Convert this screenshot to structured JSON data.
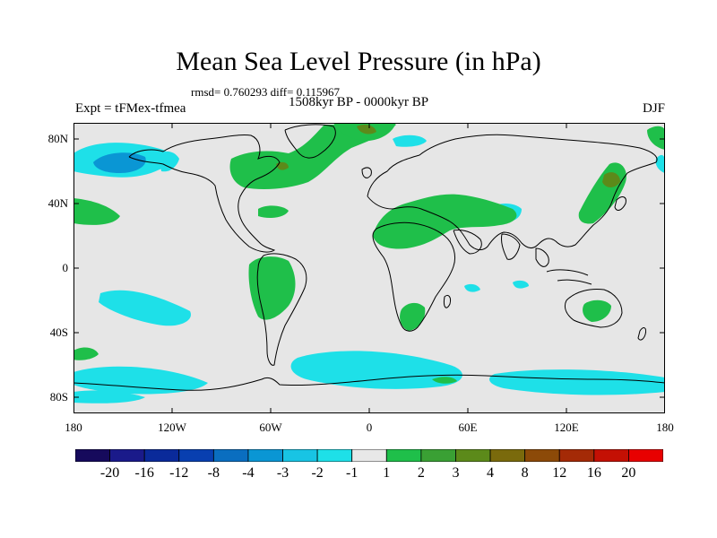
{
  "header": {
    "title": "Mean Sea Level Pressure (in hPa)",
    "stats": "rmsd= 0.760293 diff= 0.115967",
    "period": "1508kyr BP - 0000kyr BP",
    "experiment": "Expt = tFMex-tfmea",
    "season": "DJF"
  },
  "map": {
    "projection": "cylindrical-equidistant",
    "lon_range": [
      -180,
      180
    ],
    "lat_range": [
      -90,
      90
    ],
    "lat_ticks": [
      {
        "value": 80,
        "label": "80N"
      },
      {
        "value": 40,
        "label": "40N"
      },
      {
        "value": 0,
        "label": "0"
      },
      {
        "value": -40,
        "label": "40S"
      },
      {
        "value": -80,
        "label": "80S"
      }
    ],
    "lon_ticks": [
      {
        "value": -180,
        "label": "180"
      },
      {
        "value": -120,
        "label": "120W"
      },
      {
        "value": -60,
        "label": "60W"
      },
      {
        "value": 0,
        "label": "0"
      },
      {
        "value": 60,
        "label": "60E"
      },
      {
        "value": 120,
        "label": "120E"
      },
      {
        "value": 180,
        "label": "180"
      }
    ],
    "background_color": "#e6e6e6",
    "coastline_color": "#000000"
  },
  "colorbar": {
    "labels": [
      "-20",
      "-16",
      "-12",
      "-8",
      "-4",
      "-3",
      "-2",
      "-1",
      "1",
      "2",
      "3",
      "4",
      "8",
      "12",
      "16",
      "20"
    ],
    "colors": [
      "#160a5c",
      "#1a1a8a",
      "#0a2a9a",
      "#083fb0",
      "#0a6ec0",
      "#0a96d4",
      "#18c4e4",
      "#1ee0e8",
      "#e8e8e8",
      "#1fbf4a",
      "#3aa034",
      "#5c8a1a",
      "#7a6a0c",
      "#8c4a08",
      "#a42a06",
      "#c41004",
      "#e80000"
    ]
  }
}
